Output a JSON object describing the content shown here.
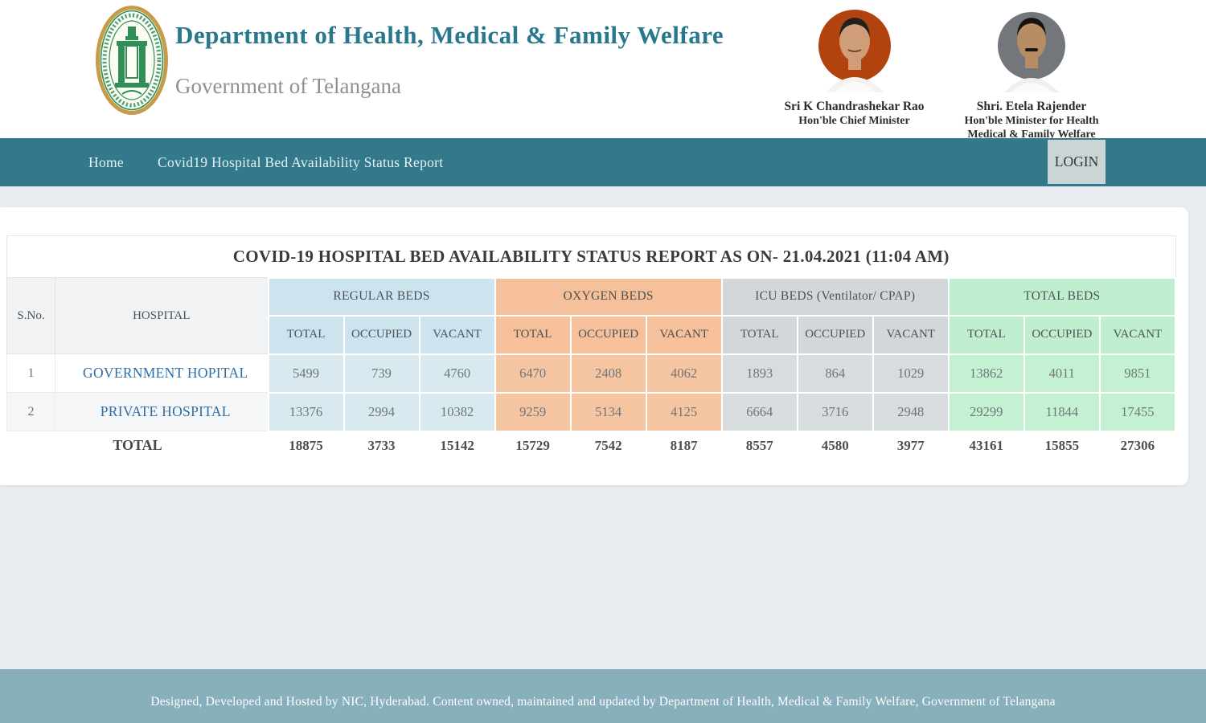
{
  "header": {
    "department": "Department of Health, Medical & Family Welfare",
    "government": "Government of Telangana",
    "cm": {
      "name": "Sri K Chandrashekar Rao",
      "title": "Hon'ble Chief Minister"
    },
    "minister": {
      "name": "Shri. Etela Rajender",
      "title_line1": "Hon'ble Minister for Health",
      "title_line2": "Medical & Family Welfare"
    }
  },
  "nav": {
    "home": "Home",
    "report": "Covid19 Hospital Bed Availability Status Report",
    "login": "LOGIN"
  },
  "report": {
    "title": "COVID-19 HOSPITAL BED AVAILABILITY STATUS REPORT AS ON- 21.04.2021 (11:04 AM)",
    "sno_header": "S.No.",
    "hospital_header": "HOSPITAL",
    "sub_headers": [
      "TOTAL",
      "OCCUPIED",
      "VACANT"
    ],
    "groups": [
      {
        "id": "regular-beds",
        "label": "REGULAR BEDS",
        "header_color": "#cde3ed",
        "cell_color": "#d8e9f0"
      },
      {
        "id": "oxygen-beds",
        "label": "OXYGEN BEDS",
        "header_color": "#f5c09a",
        "cell_color": "#f5c4a0"
      },
      {
        "id": "icu-beds",
        "label": "ICU BEDS (Ventilator/ CPAP)",
        "header_color": "#d2d7d9",
        "cell_color": "#d7dcde"
      },
      {
        "id": "total-beds",
        "label": "TOTAL BEDS",
        "header_color": "#bfefce",
        "cell_color": "#c3f1d2"
      }
    ],
    "rows": [
      {
        "sno": "1",
        "hospital": "GOVERNMENT HOPITAL",
        "values": [
          5499,
          739,
          4760,
          6470,
          2408,
          4062,
          1893,
          864,
          1029,
          13862,
          4011,
          9851
        ]
      },
      {
        "sno": "2",
        "hospital": "PRIVATE HOSPITAL",
        "values": [
          13376,
          2994,
          10382,
          9259,
          5134,
          4125,
          6664,
          3716,
          2948,
          29299,
          11844,
          17455
        ]
      }
    ],
    "total": {
      "label": "TOTAL",
      "values": [
        18875,
        3733,
        15142,
        15729,
        7542,
        8187,
        8557,
        4580,
        3977,
        43161,
        15855,
        27306
      ]
    }
  },
  "footer": {
    "text": "Designed, Developed and Hosted by NIC, Hyderabad. Content owned, maintained and updated by Department of Health, Medical & Family Welfare, Government of Telangana"
  },
  "colors": {
    "nav_teal": "#33798b",
    "footer_blue": "#87afbc",
    "accent_title": "#27788d",
    "link_blue": "#2f6da3",
    "login_bg": "#ccd5d6"
  }
}
